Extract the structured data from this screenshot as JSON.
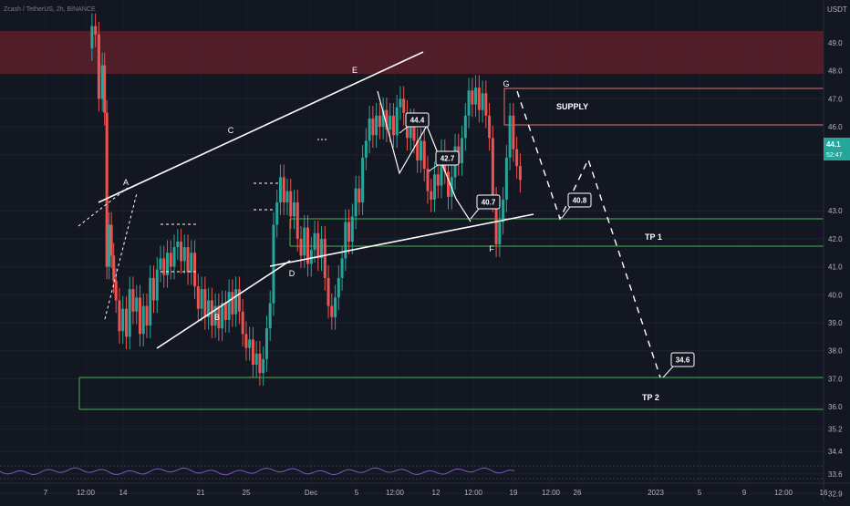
{
  "header": {
    "symbol_info": "Zcash / TetherUS, 2h, BINANCE",
    "currency": "USDT"
  },
  "price_axis": {
    "ticks": [
      "49.0",
      "48.0",
      "47.0",
      "46.0",
      "45.0",
      "43.0",
      "42.0",
      "41.0",
      "40.0",
      "39.0",
      "38.0",
      "37.0",
      "36.0",
      "35.2",
      "34.4",
      "33.6",
      "32.9",
      "32.2"
    ],
    "tick_values": [
      49.0,
      48.0,
      47.0,
      46.0,
      45.0,
      43.0,
      42.0,
      41.0,
      40.0,
      39.0,
      38.0,
      37.0,
      36.0,
      35.2,
      34.4,
      33.6,
      32.9,
      32.2
    ],
    "current_price": "44.1",
    "countdown": "52:47",
    "current_value": 44.1
  },
  "time_axis": {
    "labels": [
      "7",
      "12:00",
      "14",
      "21",
      "25",
      "Dec",
      "5",
      "12:00",
      "12",
      "12:00",
      "19",
      "12:00",
      "26",
      "2023",
      "5",
      "9",
      "12:00",
      "16"
    ]
  },
  "annotations": {
    "wave_labels": [
      "A",
      "B",
      "C",
      "D",
      "E",
      "F",
      "G"
    ],
    "zone_labels": {
      "supply": "SUPPLY",
      "tp1": "TP 1",
      "tp2": "TP 2"
    },
    "callouts": [
      "44.4",
      "42.7",
      "40.7",
      "40.8",
      "34.6"
    ]
  },
  "colors": {
    "background": "#131722",
    "up_candle": "#26a69a",
    "down_candle": "#ef5350",
    "supply_zone": "#5c1f2a",
    "support_line": "#4caf50",
    "resistance_line": "#e57373",
    "annotation": "#ffffff",
    "price_badge": "#26a69a",
    "oscillator": "#7e57c2"
  },
  "chart_data": {
    "type": "candlestick",
    "title": "Zcash / TetherUS, 2h, BINANCE",
    "x_range": [
      "Nov 6",
      "Jan 16"
    ],
    "ylim": [
      31.8,
      50.3
    ],
    "close_series": [
      [
        6.5,
        48.8
      ],
      [
        6.9,
        49.6
      ],
      [
        7.2,
        49.3
      ],
      [
        7.5,
        47.0
      ],
      [
        7.8,
        48.2
      ],
      [
        8.0,
        46.5
      ],
      [
        8.2,
        41.0
      ],
      [
        8.4,
        42.5
      ],
      [
        8.6,
        41.4
      ],
      [
        8.8,
        40.5
      ],
      [
        9.0,
        39.8
      ],
      [
        9.3,
        38.7
      ],
      [
        9.6,
        39.5
      ],
      [
        9.9,
        38.5
      ],
      [
        10.2,
        40.2
      ],
      [
        10.5,
        39.4
      ],
      [
        10.8,
        39.9
      ],
      [
        11.1,
        38.6
      ],
      [
        11.4,
        39.6
      ],
      [
        11.7,
        38.9
      ],
      [
        12.0,
        40.6
      ],
      [
        12.3,
        39.8
      ],
      [
        12.6,
        40.9
      ],
      [
        12.9,
        41.3
      ],
      [
        13.2,
        40.7
      ],
      [
        13.5,
        41.5
      ],
      [
        13.8,
        41.0
      ],
      [
        14.1,
        41.7
      ],
      [
        14.4,
        41.9
      ],
      [
        14.7,
        41.2
      ],
      [
        15.0,
        41.7
      ],
      [
        15.3,
        40.8
      ],
      [
        15.6,
        41.5
      ],
      [
        15.9,
        40.3
      ],
      [
        16.2,
        39.5
      ],
      [
        16.5,
        40.2
      ],
      [
        16.8,
        39.2
      ],
      [
        17.1,
        39.8
      ],
      [
        17.4,
        38.9
      ],
      [
        17.7,
        39.6
      ],
      [
        18.0,
        38.8
      ],
      [
        18.3,
        39.7
      ],
      [
        18.6,
        39.1
      ],
      [
        18.9,
        40.1
      ],
      [
        19.2,
        39.3
      ],
      [
        19.5,
        40.2
      ],
      [
        19.8,
        39.4
      ],
      [
        20.1,
        38.6
      ],
      [
        20.4,
        38.1
      ],
      [
        20.7,
        38.4
      ],
      [
        21.0,
        37.5
      ],
      [
        21.3,
        37.9
      ],
      [
        21.6,
        37.2
      ],
      [
        21.9,
        37.7
      ],
      [
        22.2,
        38.8
      ],
      [
        22.5,
        39.7
      ],
      [
        22.8,
        42.5
      ],
      [
        23.1,
        43.3
      ],
      [
        23.4,
        44.2
      ],
      [
        23.7,
        43.3
      ],
      [
        24.0,
        43.7
      ],
      [
        24.3,
        42.8
      ],
      [
        24.6,
        43.3
      ],
      [
        24.9,
        42.0
      ],
      [
        25.2,
        41.4
      ],
      [
        25.5,
        42.4
      ],
      [
        25.8,
        41.1
      ],
      [
        26.1,
        41.6
      ],
      [
        26.4,
        42.2
      ],
      [
        26.7,
        41.3
      ],
      [
        27.0,
        42.0
      ],
      [
        27.3,
        40.6
      ],
      [
        27.6,
        39.6
      ],
      [
        27.9,
        39.2
      ],
      [
        28.2,
        39.9
      ],
      [
        28.5,
        40.6
      ],
      [
        28.8,
        41.3
      ],
      [
        29.1,
        42.6
      ],
      [
        29.4,
        41.9
      ],
      [
        29.7,
        42.8
      ],
      [
        30.0,
        43.8
      ],
      [
        30.3,
        43.3
      ],
      [
        30.6,
        44.9
      ],
      [
        30.9,
        45.5
      ],
      [
        31.2,
        46.3
      ],
      [
        31.5,
        45.7
      ],
      [
        31.8,
        46.4
      ],
      [
        32.1,
        46.0
      ],
      [
        32.4,
        46.6
      ],
      [
        32.7,
        45.9
      ],
      [
        33.0,
        46.4
      ],
      [
        33.3,
        45.7
      ],
      [
        33.6,
        46.7
      ],
      [
        33.9,
        47.0
      ],
      [
        34.2,
        46.5
      ],
      [
        34.5,
        45.6
      ],
      [
        34.8,
        46.2
      ],
      [
        35.1,
        45.5
      ],
      [
        35.4,
        44.8
      ],
      [
        35.7,
        45.5
      ],
      [
        36.0,
        44.5
      ],
      [
        36.3,
        43.7
      ],
      [
        36.6,
        43.4
      ],
      [
        36.9,
        44.3
      ],
      [
        37.2,
        43.9
      ],
      [
        37.5,
        45.1
      ],
      [
        37.8,
        44.4
      ],
      [
        38.1,
        43.5
      ],
      [
        38.4,
        44.2
      ],
      [
        38.7,
        45.3
      ],
      [
        39.0,
        44.7
      ],
      [
        39.3,
        45.6
      ],
      [
        39.6,
        46.4
      ],
      [
        39.9,
        47.3
      ],
      [
        40.2,
        46.8
      ],
      [
        40.5,
        47.4
      ],
      [
        40.8,
        46.6
      ],
      [
        41.1,
        47.2
      ],
      [
        41.4,
        46.4
      ],
      [
        41.7,
        45.6
      ],
      [
        42.0,
        43.4
      ],
      [
        42.3,
        41.8
      ],
      [
        42.6,
        42.6
      ],
      [
        42.9,
        43.4
      ],
      [
        43.2,
        44.9
      ],
      [
        43.5,
        46.4
      ],
      [
        43.8,
        45.2
      ],
      [
        44.1,
        44.6
      ],
      [
        44.4,
        44.1
      ]
    ]
  }
}
